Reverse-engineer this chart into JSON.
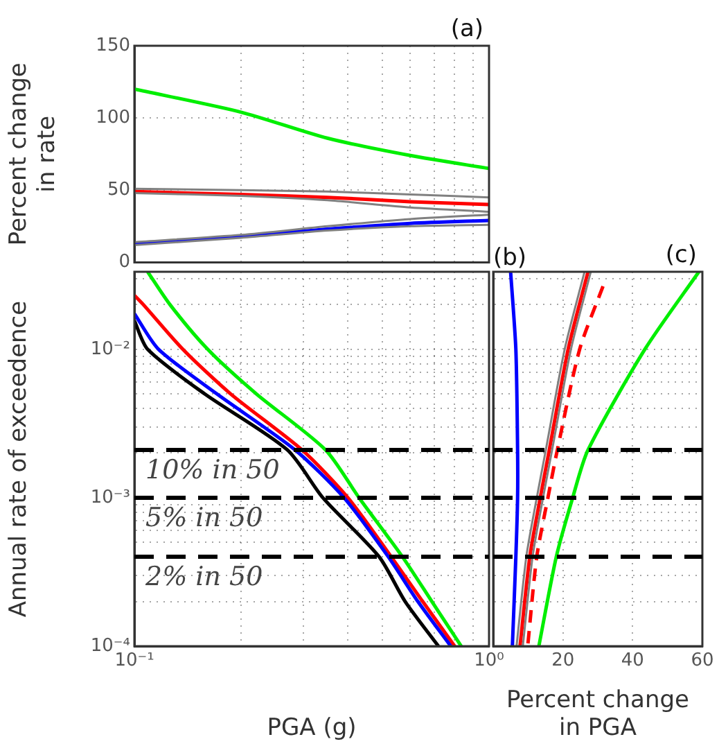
{
  "chart_data": [
    {
      "type": "line",
      "ylabel": "Percent change\nin rate",
      "annotations": [
        "(a)"
      ],
      "log": "x",
      "grid": true,
      "marker": "none",
      "legend": false,
      "tick_labels": "y",
      "xlim": [
        0.1,
        1
      ],
      "xticks": [
        {
          "value": 0.1,
          "label": null
        },
        {
          "value": 0.2,
          "label": null
        },
        {
          "value": 0.3,
          "label": null
        },
        {
          "value": 0.4,
          "label": null
        },
        {
          "value": 0.5,
          "label": null
        },
        {
          "value": 0.6,
          "label": null
        },
        {
          "value": 0.7,
          "label": null
        },
        {
          "value": 0.8,
          "label": null
        },
        {
          "value": 0.9,
          "label": null
        },
        {
          "value": 1,
          "label": null
        }
      ],
      "ylim": [
        0,
        150
      ],
      "yticks": [
        0,
        50,
        100,
        150
      ],
      "series": [
        {
          "color": "#808080",
          "x": [
            0.1,
            0.2,
            0.35,
            0.6,
            1
          ],
          "values": [
            51,
            50,
            49,
            47,
            45
          ]
        },
        {
          "color": "#808080",
          "x": [
            0.1,
            0.2,
            0.35,
            0.6,
            1
          ],
          "values": [
            48,
            46,
            43,
            38,
            35
          ]
        },
        {
          "color": "#808080",
          "x": [
            0.1,
            0.2,
            0.35,
            0.6,
            1
          ],
          "values": [
            14,
            19,
            25,
            30,
            33
          ]
        },
        {
          "color": "#808080",
          "x": [
            0.1,
            0.2,
            0.35,
            0.6,
            1
          ],
          "values": [
            12,
            17,
            22,
            25,
            26
          ]
        },
        {
          "color": "#00ee00",
          "x": [
            0.1,
            0.2,
            0.35,
            0.6,
            1
          ],
          "values": [
            120,
            104,
            86,
            74,
            65
          ]
        },
        {
          "color": "#ff0000",
          "x": [
            0.1,
            0.2,
            0.35,
            0.6,
            1
          ],
          "values": [
            49,
            47,
            45,
            42,
            40
          ]
        },
        {
          "color": "#0000ff",
          "x": [
            0.1,
            0.2,
            0.35,
            0.6,
            1
          ],
          "values": [
            13,
            18,
            23,
            27,
            29
          ]
        }
      ]
    },
    {
      "type": "line",
      "xlabel": "PGA (g)",
      "ylabel": "Annual rate of exceedence",
      "annotations": [
        "(b)"
      ],
      "log": "xy",
      "grid": true,
      "marker": "none",
      "legend": false,
      "xlim": [
        0.1,
        1
      ],
      "xticks": [
        {
          "value": 0.1,
          "label": "10⁻¹"
        },
        {
          "value": 0.2,
          "label": null
        },
        {
          "value": 0.3,
          "label": null
        },
        {
          "value": 0.4,
          "label": null
        },
        {
          "value": 0.5,
          "label": null
        },
        {
          "value": 0.6,
          "label": null
        },
        {
          "value": 0.7,
          "label": null
        },
        {
          "value": 0.8,
          "label": null
        },
        {
          "value": 0.9,
          "label": null
        },
        {
          "value": 1,
          "label": "10⁰"
        }
      ],
      "ylim": [
        0.0001,
        0.0333
      ],
      "yticks": [
        {
          "value": 0.0001,
          "label": "10⁻⁴"
        },
        {
          "value": 0.0002,
          "label": null
        },
        {
          "value": 0.0003,
          "label": null
        },
        {
          "value": 0.0005,
          "label": null
        },
        {
          "value": 0.0006,
          "label": null
        },
        {
          "value": 0.0007,
          "label": null
        },
        {
          "value": 0.0008,
          "label": null
        },
        {
          "value": 0.0009,
          "label": null
        },
        {
          "value": 0.001,
          "label": "10⁻³"
        },
        {
          "value": 0.002,
          "label": null
        },
        {
          "value": 0.003,
          "label": null
        },
        {
          "value": 0.004,
          "label": null
        },
        {
          "value": 0.005,
          "label": null
        },
        {
          "value": 0.006,
          "label": null
        },
        {
          "value": 0.007,
          "label": null
        },
        {
          "value": 0.008,
          "label": null
        },
        {
          "value": 0.009,
          "label": null
        },
        {
          "value": 0.01,
          "label": "10⁻²"
        },
        {
          "value": 0.02,
          "label": null
        },
        {
          "value": 0.03,
          "label": null
        }
      ],
      "ref_lines": [
        {
          "axis": "y",
          "value": 0.0021,
          "label": "10% in 50",
          "color": "#000000",
          "line_style": "dashed"
        },
        {
          "axis": "y",
          "value": 0.001,
          "label": "5% in 50",
          "color": "#000000",
          "line_style": "dashed"
        },
        {
          "axis": "y",
          "value": 0.0004,
          "label": "2% in 50",
          "color": "#000000",
          "line_style": "dashed"
        }
      ],
      "series": [
        {
          "color": "#000000",
          "x": [
            0.1,
            0.109,
            0.158,
            0.27,
            0.34,
            0.49,
            0.58,
            0.72
          ],
          "values": [
            0.0156,
            0.01,
            0.005,
            0.0021,
            0.001,
            0.0004,
            0.0002,
            0.0001
          ]
        },
        {
          "color": "#0000ff",
          "x": [
            0.1,
            0.117,
            0.171,
            0.284,
            0.39,
            0.52,
            0.63,
            0.78
          ],
          "values": [
            0.0174,
            0.01,
            0.005,
            0.0021,
            0.001,
            0.0004,
            0.0002,
            0.0001
          ]
        },
        {
          "color": "#ff0000",
          "x": [
            0.1,
            0.106,
            0.137,
            0.187,
            0.297,
            0.4,
            0.53,
            0.65,
            0.8
          ],
          "values": [
            0.0231,
            0.02,
            0.01,
            0.005,
            0.0021,
            0.001,
            0.0004,
            0.0002,
            0.0001
          ]
        },
        {
          "color": "#00ee00",
          "x": [
            0.109,
            0.126,
            0.161,
            0.221,
            0.346,
            0.43,
            0.57,
            0.69,
            0.835
          ],
          "values": [
            0.0333,
            0.02,
            0.01,
            0.005,
            0.0021,
            0.001,
            0.0004,
            0.0002,
            0.0001
          ]
        }
      ]
    },
    {
      "type": "line",
      "xlabel": "Percent change\nin PGA",
      "annotations": [
        "(c)"
      ],
      "log": "y",
      "grid": true,
      "marker": "none",
      "legend": false,
      "tick_labels": "x",
      "xlim": [
        0,
        60
      ],
      "xticks": [
        {
          "value": 0,
          "label": null
        },
        20,
        40,
        60
      ],
      "ylim": [
        0.0001,
        0.0333
      ],
      "yticks": [
        {
          "value": 0.0001,
          "label": null
        },
        {
          "value": 0.0002,
          "label": null
        },
        {
          "value": 0.0003,
          "label": null
        },
        {
          "value": 0.0005,
          "label": null
        },
        {
          "value": 0.0006,
          "label": null
        },
        {
          "value": 0.0007,
          "label": null
        },
        {
          "value": 0.0008,
          "label": null
        },
        {
          "value": 0.0009,
          "label": null
        },
        {
          "value": 0.001,
          "label": null
        },
        {
          "value": 0.002,
          "label": null
        },
        {
          "value": 0.003,
          "label": null
        },
        {
          "value": 0.004,
          "label": null
        },
        {
          "value": 0.005,
          "label": null
        },
        {
          "value": 0.006,
          "label": null
        },
        {
          "value": 0.007,
          "label": null
        },
        {
          "value": 0.008,
          "label": null
        },
        {
          "value": 0.009,
          "label": null
        },
        {
          "value": 0.01,
          "label": null
        },
        {
          "value": 0.02,
          "label": null
        },
        {
          "value": 0.03,
          "label": null
        }
      ],
      "ref_lines": [
        {
          "axis": "y",
          "value": 0.0021,
          "color": "#000000",
          "line_style": "dashed"
        },
        {
          "axis": "y",
          "value": 0.001,
          "color": "#000000",
          "line_style": "dashed"
        },
        {
          "axis": "y",
          "value": 0.0004,
          "color": "#000000",
          "line_style": "dashed"
        }
      ],
      "series": [
        {
          "color": "#808080",
          "x": [
            26.2,
            20.5,
            15.1,
            12.5,
            9.5,
            6.7
          ],
          "values": [
            0.0333,
            0.01,
            0.0021,
            0.001,
            0.0004,
            0.0001
          ]
        },
        {
          "color": "#808080",
          "x": [
            28,
            22.3,
            16.9,
            14.3,
            11.3,
            8.5
          ],
          "values": [
            0.0333,
            0.01,
            0.0021,
            0.001,
            0.0004,
            0.0001
          ]
        },
        {
          "color": "#0000ff",
          "x": [
            5,
            6.5,
            7,
            7,
            6.5,
            5.5
          ],
          "values": [
            0.0333,
            0.01,
            0.0021,
            0.001,
            0.0004,
            0.0001
          ]
        },
        {
          "color": "#ff0000",
          "x": [
            27.2,
            21.5,
            16.1,
            13.5,
            10.5,
            7.7
          ],
          "values": [
            0.0333,
            0.01,
            0.0021,
            0.001,
            0.0004,
            0.0001
          ]
        },
        {
          "color": "#ff0000",
          "line_style": "dashed",
          "x": [
            31.5,
            24.8,
            18.4,
            15.7,
            12.5,
            9.9
          ],
          "values": [
            0.0266,
            0.01,
            0.0021,
            0.001,
            0.0004,
            0.0001
          ]
        },
        {
          "color": "#00ee00",
          "x": [
            59,
            43.5,
            27.2,
            22.8,
            18.1,
            13.1
          ],
          "values": [
            0.0333,
            0.01,
            0.0021,
            0.001,
            0.0004,
            0.0001
          ]
        }
      ]
    }
  ]
}
